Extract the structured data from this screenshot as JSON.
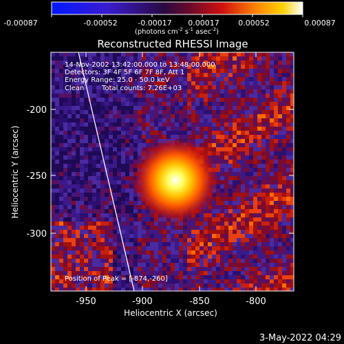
{
  "colorbar": {
    "ticks": [
      "-0.00087",
      "-0.00052",
      "-0.00017",
      "0.00017",
      "0.00052",
      "0.00087"
    ],
    "units_main": "(photons cm",
    "units_exp1": "-2",
    "units_mid": " s",
    "units_exp2": "-1",
    "units_tail": " asec",
    "units_exp3": "-2",
    "units_close": ")"
  },
  "title": "Reconstructed RHESSI Image",
  "annotations": {
    "time_range": "14-Nov-2002 13:42:00.000 to 13:48:00.000",
    "detectors": "Detectors: 3F 4F 5F 6F 7F 8F, Att 1",
    "energy": "Energy Range: 25.0 - 50.0 keV",
    "method": "Clean",
    "counts": "Total counts: 7.26E+03",
    "peak": "Position of Peak = [-874,-260]"
  },
  "axes": {
    "xlabel": "Heliocentric X (arcsec)",
    "ylabel": "Heliocentric Y (arcsec)",
    "xticks": [
      "-950",
      "-900",
      "-850",
      "-800"
    ],
    "yticks": [
      "-200",
      "-250",
      "-300"
    ]
  },
  "footer_date": "3-May-2022 04:29",
  "colors": {
    "background": "#000000",
    "limb_line": "#ffffff",
    "colorbar_low": "#0000ff",
    "colorbar_high": "#ffffff"
  }
}
